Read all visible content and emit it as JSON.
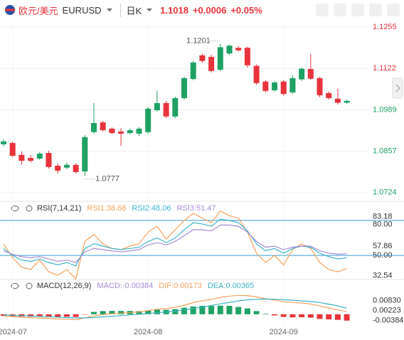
{
  "header": {
    "name": "欧元/美元",
    "symbol": "EURUSD",
    "period": "日K",
    "price": 1.1018,
    "change": "+0.0006",
    "change_pct": "+0.05%"
  },
  "chart_data": [
    {
      "type": "candlestick",
      "categories": [
        null,
        "2024-07",
        null,
        null,
        null,
        null,
        null,
        null,
        null,
        null,
        null,
        null,
        null,
        null,
        null,
        null,
        "2024-08",
        null,
        null,
        null,
        null,
        null,
        null,
        null,
        null,
        null,
        null,
        null,
        null,
        null,
        null,
        "2024-09",
        null,
        null,
        null,
        null,
        null,
        null,
        null
      ],
      "open": [
        1.0879,
        1.0883,
        1.0845,
        1.0835,
        1.0833,
        1.0851,
        1.081,
        1.0804,
        1.0813,
        1.0792,
        1.0918,
        1.0949,
        1.0929,
        1.092,
        1.0915,
        1.0913,
        1.0918,
        1.0988,
        1.1011,
        1.0968,
        1.1027,
        1.1088,
        1.1164,
        1.1159,
        1.1118,
        1.117,
        1.1188,
        1.1188,
        1.113,
        1.108,
        1.1052,
        1.108,
        1.1045,
        1.1087,
        1.112,
        1.1091,
        1.1043,
        1.1025,
        1.1012
      ],
      "high": [
        1.0895,
        1.0888,
        1.0856,
        1.0845,
        1.0854,
        1.0858,
        1.0817,
        1.082,
        1.0818,
        1.0908,
        1.1011,
        1.0954,
        1.0933,
        1.0931,
        1.0929,
        1.0934,
        1.0998,
        1.1052,
        1.1018,
        1.1032,
        1.1096,
        1.1146,
        1.117,
        1.1166,
        1.1201,
        1.1199,
        1.1193,
        1.1192,
        1.1135,
        1.1084,
        1.1082,
        1.1085,
        1.11,
        1.1125,
        1.1168,
        1.1095,
        1.1048,
        1.1057,
        1.1022
      ],
      "low": [
        1.0872,
        1.0838,
        1.0813,
        1.082,
        1.0829,
        1.0801,
        1.0785,
        1.0799,
        1.0785,
        1.0777,
        1.0913,
        1.092,
        1.0911,
        1.0874,
        1.0911,
        1.0906,
        1.0913,
        1.0984,
        1.0963,
        1.0963,
        1.1022,
        1.1084,
        1.1141,
        1.1109,
        1.1113,
        1.1165,
        1.1176,
        1.1125,
        1.107,
        1.1045,
        1.1047,
        1.1035,
        1.104,
        1.1082,
        1.1085,
        1.103,
        1.1022,
        1.1006,
        1.1008
      ],
      "close": [
        1.0888,
        1.0842,
        1.0826,
        1.0826,
        1.0849,
        1.0806,
        1.0794,
        1.0813,
        1.079,
        1.0902,
        1.0947,
        1.0924,
        1.0915,
        1.0913,
        1.0924,
        1.0929,
        1.0993,
        1.1011,
        1.0968,
        1.1027,
        1.1091,
        1.1141,
        1.1146,
        1.1114,
        1.119,
        1.1195,
        1.118,
        1.1132,
        1.1075,
        1.105,
        1.1077,
        1.104,
        1.1091,
        1.1121,
        1.1089,
        1.1036,
        1.1027,
        1.1012,
        1.1018
      ],
      "up_color": "#1fa164",
      "down_color": "#e8333a",
      "ylim": [
        1.0703,
        1.1273
      ],
      "yticks": [
        1.1255,
        1.1122,
        1.0989,
        1.0857,
        1.0724
      ],
      "ytick_colors": [
        "#e8333a",
        "#e8333a",
        "#1fa164",
        "#1fa164",
        "#1fa164"
      ],
      "grid": true,
      "mark_extremes": true
    },
    {
      "type": "line",
      "title": "RSI(7,14,21)",
      "series": [
        {
          "name": "RSI1:38.68",
          "color": "#f5a25d",
          "values": [
            60,
            48,
            40,
            38,
            46,
            36,
            33,
            38,
            30,
            62,
            68,
            60,
            56,
            55,
            58,
            60,
            70,
            75,
            64,
            72,
            80,
            86,
            82,
            78,
            88,
            84,
            82,
            70,
            52,
            44,
            50,
            42,
            55,
            60,
            56,
            44,
            38,
            36,
            38.68
          ]
        },
        {
          "name": "RSI2:48.06",
          "color": "#3fb4cc",
          "values": [
            56,
            50,
            46,
            45,
            47,
            44,
            42,
            44,
            41,
            56,
            60,
            58,
            56,
            55,
            56,
            57,
            62,
            65,
            61,
            65,
            72,
            78,
            77,
            75,
            81,
            80,
            78,
            71,
            60,
            54,
            56,
            52,
            56,
            58,
            57,
            52,
            49,
            47,
            48.06
          ]
        },
        {
          "name": "RSI3:51.47",
          "color": "#a58bd8",
          "values": [
            54,
            51,
            49,
            48,
            49,
            47,
            45,
            46,
            44,
            53,
            56,
            55,
            54,
            53,
            54,
            55,
            59,
            61,
            59,
            62,
            67,
            72,
            72,
            71,
            76,
            76,
            75,
            70,
            62,
            57,
            58,
            55,
            57,
            58,
            58,
            54,
            52,
            51,
            51.47
          ]
        }
      ],
      "ylim": [
        30,
        86
      ],
      "yticks": [
        {
          "value": 80,
          "label": "80.00"
        },
        83.18,
        57.86,
        {
          "value": 50,
          "label": "50.00"
        },
        32.54
      ],
      "hlines": [
        80,
        50
      ],
      "hline_color": "#3a9bd5"
    },
    {
      "type": "macd",
      "title": "MACD(12,26,9)",
      "series": [
        {
          "name": "MACD:-0.00384",
          "color": "#a58bd8",
          "style": "bar",
          "values": [
            -0.001,
            -0.0012,
            -0.0014,
            -0.0015,
            -0.0014,
            -0.0015,
            -0.0016,
            -0.0015,
            -0.0016,
            -0.0002,
            0.0014,
            0.0019,
            0.002,
            0.002,
            0.002,
            0.0019,
            0.0024,
            0.0028,
            0.0027,
            0.0031,
            0.0039,
            0.0047,
            0.0051,
            0.005,
            0.0052,
            0.0051,
            0.0044,
            0.0035,
            0.0019,
            0.0003,
            -0.0007,
            -0.0016,
            -0.0019,
            -0.0018,
            -0.002,
            -0.0028,
            -0.0031,
            -0.0034,
            -0.00384
          ]
        },
        {
          "name": "DIF:0.00173",
          "color": "#f5a25d",
          "values": [
            -0.001,
            -0.0014,
            -0.0018,
            -0.0021,
            -0.0022,
            -0.0025,
            -0.0028,
            -0.003,
            -0.0033,
            -0.0022,
            -0.001,
            -0.0002,
            0.0003,
            0.0007,
            0.0011,
            0.0014,
            0.0022,
            0.003,
            0.0034,
            0.0042,
            0.0055,
            0.007,
            0.0082,
            0.009,
            0.0102,
            0.011,
            0.0114,
            0.0113,
            0.0105,
            0.0094,
            0.0086,
            0.0076,
            0.0071,
            0.0068,
            0.0062,
            0.005,
            0.0038,
            0.0026,
            0.00173
          ]
        },
        {
          "name": "DEA:0.00365",
          "color": "#3bb3c3",
          "values": [
            -0.0005,
            -0.0007,
            -0.0009,
            -0.0011,
            -0.0013,
            -0.0015,
            -0.0017,
            -0.002,
            -0.0022,
            -0.0022,
            -0.002,
            -0.0016,
            -0.0012,
            -0.0008,
            -0.0004,
            0.0,
            0.0004,
            0.0009,
            0.0014,
            0.0019,
            0.0026,
            0.0035,
            0.0044,
            0.0053,
            0.0063,
            0.0072,
            0.0081,
            0.0087,
            0.0091,
            0.0092,
            0.0091,
            0.0088,
            0.0085,
            0.0081,
            0.0077,
            0.0071,
            0.0061,
            0.0051,
            0.00365
          ]
        }
      ],
      "up_color": "#1fa164",
      "down_color": "#e8333a",
      "ylim": [
        -0.013,
        0.018
      ],
      "yticks": [
        {
          "value": 0.0083,
          "label": "0.00830"
        },
        0.00223,
        -0.00384
      ]
    }
  ]
}
